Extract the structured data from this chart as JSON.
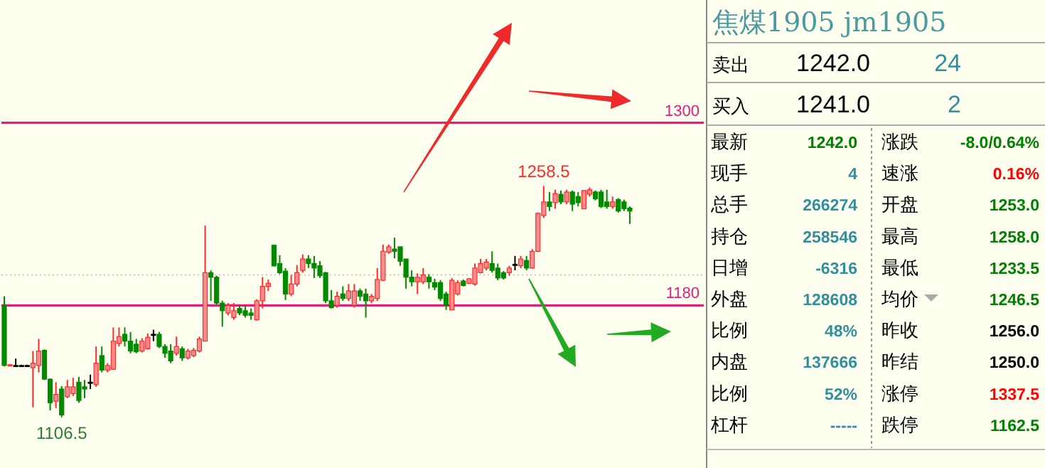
{
  "chart_data": [
    {
      "type": "candlestick",
      "categories": [
        null,
        null,
        null,
        null,
        null,
        null,
        null,
        null,
        null,
        null,
        null,
        null,
        null,
        null,
        null,
        null,
        null,
        null,
        null,
        null,
        null,
        null,
        null,
        null,
        null,
        null,
        null,
        null,
        null,
        null,
        null,
        null,
        null,
        null,
        null,
        null,
        null,
        null,
        null,
        null,
        null,
        null,
        null,
        null,
        null,
        null,
        null,
        null,
        null,
        null,
        null,
        null,
        null,
        null,
        null,
        null,
        null,
        null,
        null,
        null,
        null,
        null,
        null,
        null,
        null,
        null,
        null,
        null,
        null,
        null,
        null,
        null,
        null,
        null,
        null,
        null,
        null,
        null,
        null,
        null,
        null,
        null,
        null,
        null,
        null,
        null,
        null,
        null,
        null,
        null,
        null,
        null,
        null,
        null,
        null,
        null,
        null,
        null,
        null,
        null,
        null,
        null,
        null,
        null,
        null,
        null,
        null,
        null,
        null,
        null
      ],
      "ohlc": [
        [
          1180,
          1186,
          1140,
          1140.5
        ],
        [
          1140.5,
          1141.5,
          1140,
          1141
        ],
        [
          1140.5,
          1145,
          1140,
          1140.5
        ],
        [
          1140.5,
          1141,
          1140,
          1140.5
        ],
        [
          1140.5,
          1141,
          1139.5,
          1140.5
        ],
        [
          1139,
          1150,
          1113,
          1142
        ],
        [
          1140.5,
          1158,
          1136,
          1150
        ],
        [
          1150.5,
          1151,
          1131,
          1131.5
        ],
        [
          1131.5,
          1132,
          1111,
          1116
        ],
        [
          1117,
          1129.5,
          1112.5,
          1121.5
        ],
        [
          1125,
          1127,
          1106.5,
          1108
        ],
        [
          1120,
          1131,
          1119,
          1126.5
        ],
        [
          1122,
          1132.5,
          1120.5,
          1126.5
        ],
        [
          1129.5,
          1133,
          1116,
          1117.5
        ],
        [
          1126.5,
          1131,
          1119,
          1125
        ],
        [
          1129.5,
          1134.5,
          1125,
          1129.5
        ],
        [
          1128,
          1153,
          1126.5,
          1142
        ],
        [
          1147,
          1153,
          1136,
          1137.5
        ],
        [
          1137.5,
          1142,
          1136,
          1140.5
        ],
        [
          1138,
          1165.5,
          1137.5,
          1156.5
        ],
        [
          1155,
          1165.5,
          1153,
          1159.5
        ],
        [
          1161,
          1165.5,
          1153,
          1156.5
        ],
        [
          1156.5,
          1162.5,
          1148.5,
          1150
        ],
        [
          1154.5,
          1158,
          1148.5,
          1149.5
        ],
        [
          1150,
          1158.5,
          1149,
          1156.5
        ],
        [
          1151.5,
          1161.5,
          1151,
          1159
        ],
        [
          1161,
          1164,
          1156.5,
          1161
        ],
        [
          1161,
          1162.5,
          1152,
          1153
        ],
        [
          1153,
          1154.5,
          1145.5,
          1148.5
        ],
        [
          1150,
          1154.5,
          1142,
          1143.5
        ],
        [
          1148.5,
          1159.5,
          1147,
          1153
        ],
        [
          1151.5,
          1153,
          1143.5,
          1145.5
        ],
        [
          1145.5,
          1151.5,
          1144.5,
          1150
        ],
        [
          1147,
          1152,
          1146,
          1150.5
        ],
        [
          1150,
          1159.5,
          1149,
          1158
        ],
        [
          1156.5,
          1232.5,
          1156.5,
          1201.5
        ],
        [
          1201.5,
          1203,
          1183,
          1198.5
        ],
        [
          1198.5,
          1199.5,
          1180.5,
          1181.5
        ],
        [
          1181.5,
          1183,
          1166,
          1176.5
        ],
        [
          1175,
          1181.5,
          1173.5,
          1180
        ],
        [
          1172,
          1181.5,
          1170.5,
          1176.5
        ],
        [
          1178,
          1180,
          1173.5,
          1175
        ],
        [
          1176.5,
          1180,
          1172,
          1173.5
        ],
        [
          1175,
          1178,
          1170.5,
          1173.5
        ],
        [
          1170.5,
          1184,
          1170,
          1183
        ],
        [
          1183,
          1198.5,
          1178,
          1192.5
        ],
        [
          1192.5,
          1197,
          1189.5,
          1194.5
        ],
        [
          1219.5,
          1220,
          1205.5,
          1206
        ],
        [
          1207.5,
          1213,
          1200.5,
          1201.5
        ],
        [
          1202.5,
          1204.5,
          1183.5,
          1187.5
        ],
        [
          1187.5,
          1200,
          1186,
          1194
        ],
        [
          1194,
          1206.5,
          1192.5,
          1201.5
        ],
        [
          1203,
          1213.5,
          1201.5,
          1210.5
        ],
        [
          1210.5,
          1213,
          1204.5,
          1207.5
        ],
        [
          1207.5,
          1212.5,
          1198,
          1204.5
        ],
        [
          1206,
          1209,
          1198,
          1199.5
        ],
        [
          1201.5,
          1202,
          1181.5,
          1183
        ],
        [
          1183,
          1190,
          1178,
          1178.5
        ],
        [
          1180,
          1189,
          1178.5,
          1186
        ],
        [
          1187.5,
          1192.5,
          1183,
          1184.5
        ],
        [
          1184.5,
          1194,
          1183,
          1189.5
        ],
        [
          1180,
          1194,
          1178.5,
          1189.5
        ],
        [
          1189.5,
          1191,
          1183,
          1186
        ],
        [
          1187.5,
          1191,
          1172,
          1183
        ],
        [
          1183,
          1187.5,
          1181.5,
          1186
        ],
        [
          1184.5,
          1204.5,
          1183,
          1197
        ],
        [
          1196.5,
          1220,
          1196,
          1215.5
        ],
        [
          1215,
          1220,
          1214,
          1218.5
        ],
        [
          1217,
          1224.5,
          1211,
          1215.5
        ],
        [
          1218.5,
          1218.5,
          1206,
          1209
        ],
        [
          1210.5,
          1210.5,
          1191,
          1198.5
        ],
        [
          1198.5,
          1203,
          1192.5,
          1195.5
        ],
        [
          1195.5,
          1201,
          1187.5,
          1198.5
        ],
        [
          1195.5,
          1204.5,
          1194,
          1200
        ],
        [
          1198.5,
          1200.5,
          1191,
          1195.5
        ],
        [
          1195,
          1197.5,
          1190,
          1192
        ],
        [
          1195,
          1196.5,
          1183,
          1184.5
        ],
        [
          1187.5,
          1189,
          1177,
          1180
        ],
        [
          1177,
          1198,
          1177,
          1196.5
        ],
        [
          1187.5,
          1196.5,
          1186.5,
          1195
        ],
        [
          1196,
          1197,
          1192.5,
          1193
        ],
        [
          1194.5,
          1198,
          1194,
          1197.5
        ],
        [
          1194,
          1207.5,
          1193,
          1204.5
        ],
        [
          1201.5,
          1210.5,
          1201,
          1207.5
        ],
        [
          1204.5,
          1210.5,
          1203,
          1208.5
        ],
        [
          1207.5,
          1215.5,
          1201.5,
          1203
        ],
        [
          1204.5,
          1207.5,
          1196.5,
          1198
        ],
        [
          1201.5,
          1202.5,
          1197,
          1198
        ],
        [
          1201.5,
          1206,
          1199.5,
          1204.5
        ],
        [
          1207,
          1212.5,
          1203,
          1207
        ],
        [
          1206,
          1212.5,
          1204.5,
          1210.5
        ],
        [
          1209.5,
          1212.5,
          1203,
          1204.5
        ],
        [
          1204.5,
          1217,
          1204,
          1215.5
        ],
        [
          1215.5,
          1241,
          1215,
          1240.5
        ],
        [
          1239,
          1258.5,
          1237.5,
          1248
        ],
        [
          1248,
          1254.5,
          1242,
          1245
        ],
        [
          1247.5,
          1256,
          1243.5,
          1253.5
        ],
        [
          1253,
          1255.5,
          1246.5,
          1248
        ],
        [
          1248,
          1256,
          1246.5,
          1254.5
        ],
        [
          1254.5,
          1255.5,
          1242,
          1246.5
        ],
        [
          1251.5,
          1254.5,
          1245,
          1247.5
        ],
        [
          1243.5,
          1255.5,
          1243.5,
          1255.5
        ],
        [
          1253,
          1257.5,
          1251.5,
          1256
        ],
        [
          1254.5,
          1255.5,
          1249,
          1250
        ],
        [
          1254.5,
          1256,
          1244,
          1245
        ],
        [
          1248,
          1256,
          1243.5,
          1245
        ],
        [
          1245,
          1251.5,
          1243.5,
          1248
        ],
        [
          1249.5,
          1250.5,
          1241,
          1242
        ],
        [
          1248,
          1249.5,
          1242,
          1243.5
        ],
        [
          1244,
          1245,
          1233.5,
          1242
        ]
      ],
      "tick_labels": false,
      "grid": false,
      "ref_lines": [
        {
          "axis": "y",
          "value": 1300,
          "label": "1300",
          "color": "#e0207a",
          "line_style": "solid"
        },
        {
          "axis": "y",
          "value": 1180,
          "label": "1180",
          "color": "#e0207a",
          "line_style": "solid"
        },
        {
          "axis": "y",
          "value": 1200,
          "label": null,
          "color": "#c8c8c8",
          "line_style": "dotted"
        }
      ],
      "annotations": [
        {
          "text": "1258.5",
          "y": 1258.5
        },
        {
          "text": "1106.5",
          "y": 1106.5
        }
      ]
    },
    {
      "type": "other",
      "title": "焦煤1905 jm1905",
      "annotations": [
        "卖出",
        "1242.0",
        "24",
        "买入",
        "1241.0",
        "2",
        "最新",
        "1242.0",
        "涨跌",
        "-8.0/0.64%",
        "现手",
        "4",
        "速涨",
        "0.16%",
        "总手",
        "266274",
        "开盘",
        "1253.0",
        "持仓",
        "258546",
        "最高",
        "1258.0",
        "日增",
        "-6316",
        "最低",
        "1233.5",
        "外盘",
        "128608",
        "均价",
        "1246.5",
        "比例",
        "48%",
        "昨收",
        "1256.0",
        "内盘",
        "137666",
        "昨结",
        "1250.0",
        "比例",
        "52%",
        "涨停",
        "1337.5",
        "杠杆",
        "-----",
        "跌停",
        "1162.5"
      ],
      "colors": [
        "#000000",
        "#000000",
        "#2f8f9f",
        "#000000",
        "#000000",
        "#2f8f9f",
        "#000000",
        "#008000",
        "#000000",
        "#008000",
        "#000000",
        "#2f8f9f",
        "#000000",
        "#ff0000",
        "#000000",
        "#2f8f9f",
        "#000000",
        "#008000",
        "#000000",
        "#2f8f9f",
        "#000000",
        "#008000",
        "#000000",
        "#2f8f9f",
        "#000000",
        "#008000",
        "#000000",
        "#2f8f9f",
        "#000000",
        "#008000",
        "#000000",
        "#2f8f9f",
        "#000000",
        "#000000",
        "#000000",
        "#2f8f9f",
        "#000000",
        "#000000",
        "#000000",
        "#2f8f9f",
        "#000000",
        "#ff0000",
        "#000000",
        "#2f8f9f",
        "#000000",
        "#008000"
      ]
    }
  ]
}
